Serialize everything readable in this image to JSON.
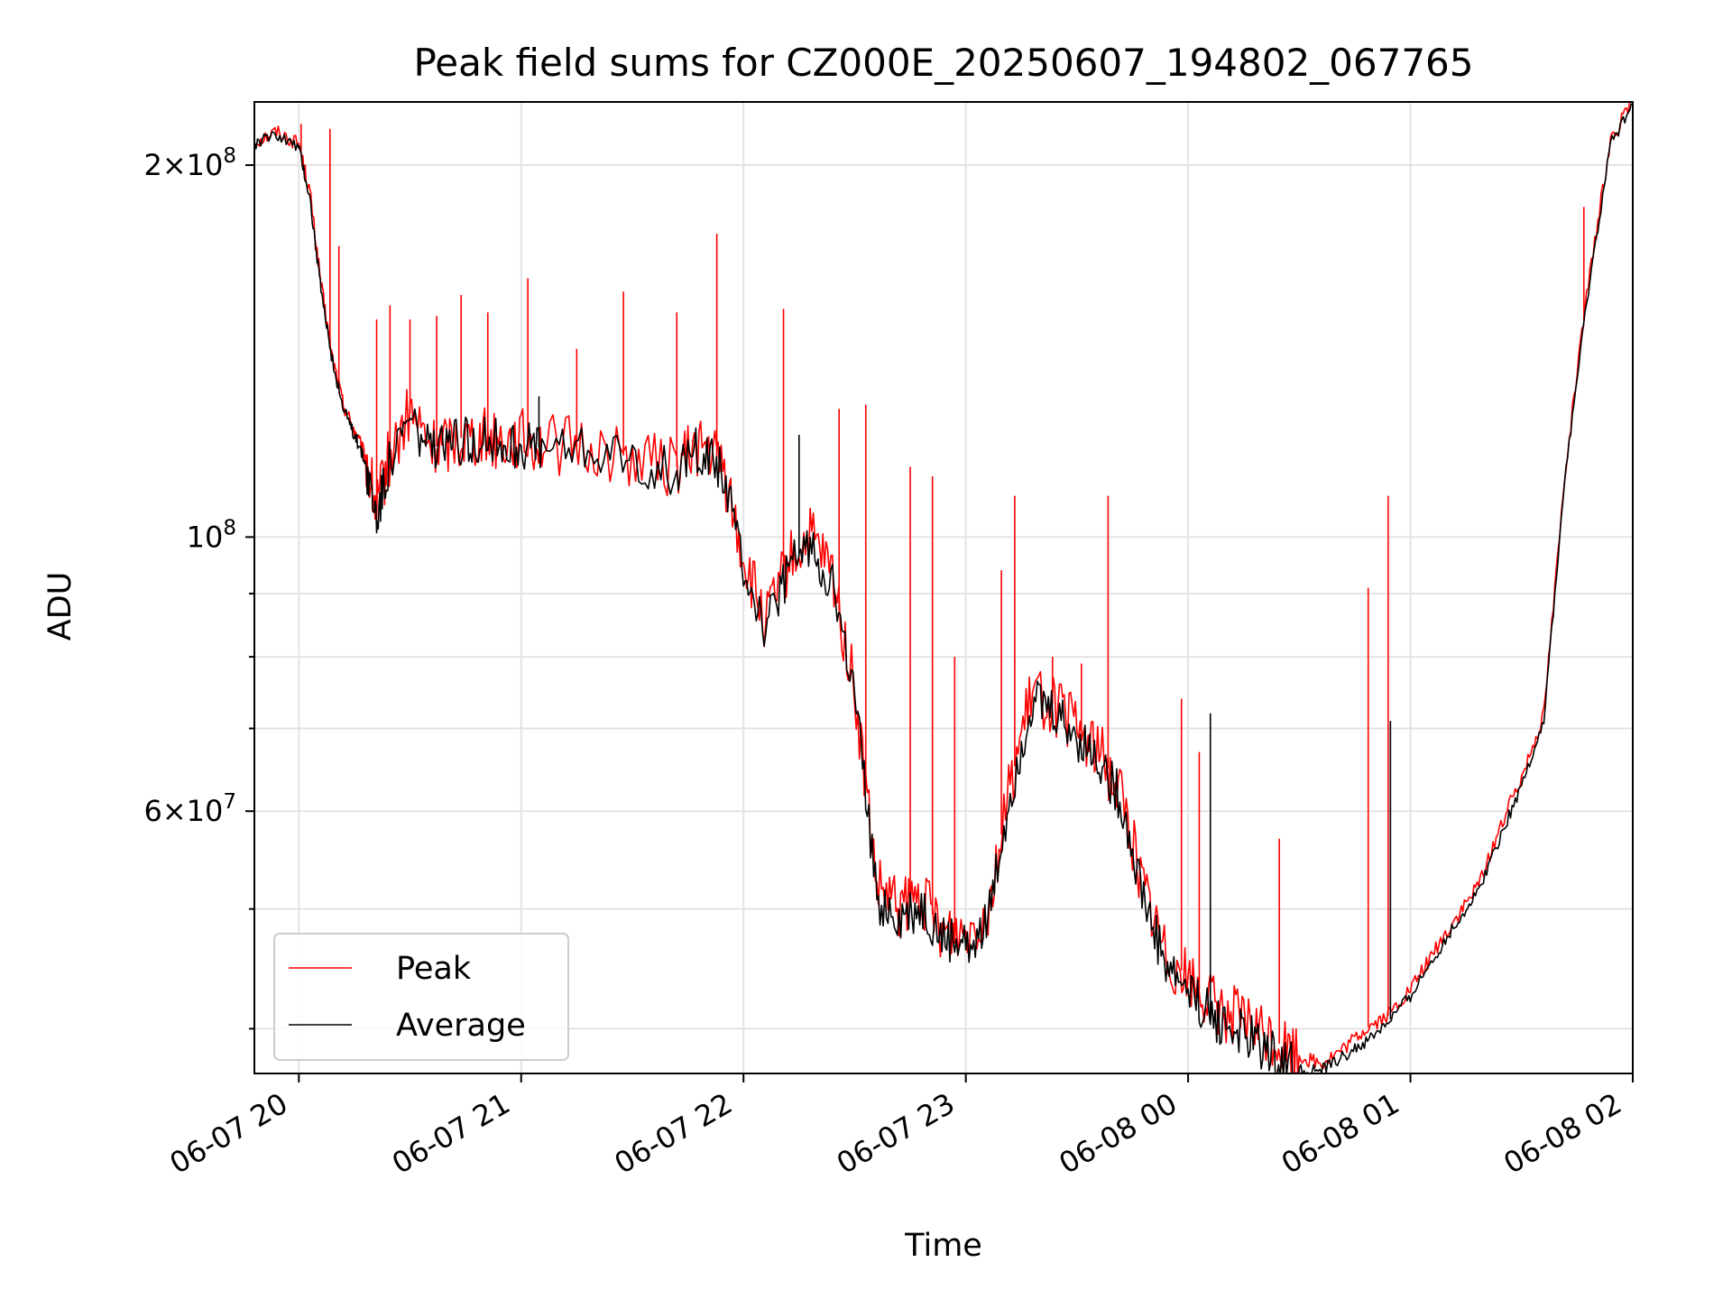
{
  "chart_data": {
    "type": "line",
    "title": "Peak field sums for CZ000E_20250607_194802_067765",
    "xlabel": "Time",
    "ylabel": "ADU",
    "yscale": "log",
    "grid": true,
    "legend_position": "lower-left",
    "x_unit": "hours since 2025-06-07 19:48",
    "xlim": [
      0,
      6.2
    ],
    "ylim": [
      36800000,
      225000000
    ],
    "x_ticks": [
      {
        "x": 0.2,
        "label": "06-07 20"
      },
      {
        "x": 1.2,
        "label": "06-07 21"
      },
      {
        "x": 2.2,
        "label": "06-07 22"
      },
      {
        "x": 3.2,
        "label": "06-07 23"
      },
      {
        "x": 4.2,
        "label": "06-08 00"
      },
      {
        "x": 5.2,
        "label": "06-08 01"
      },
      {
        "x": 6.2,
        "label": "06-08 02"
      }
    ],
    "y_major_ticks": [
      {
        "value": 200000000,
        "mantissa": "2",
        "exp": "8"
      },
      {
        "value": 100000000,
        "mantissa": "",
        "exp": "8"
      },
      {
        "value": 60000000,
        "mantissa": "6",
        "exp": "7"
      }
    ],
    "y_minor_ticks": [
      40000000,
      50000000,
      70000000,
      80000000,
      90000000
    ],
    "y_tick_base": "10",
    "y_tick_times": "×",
    "series": [
      {
        "name": "Peak",
        "color": "#ff0000",
        "x": [
          0,
          0.1,
          0.2,
          0.25,
          0.3,
          0.35,
          0.4,
          0.45,
          0.5,
          0.55,
          0.6,
          0.7,
          0.8,
          0.9,
          1.0,
          1.1,
          1.2,
          1.3,
          1.5,
          1.7,
          1.9,
          2.0,
          2.1,
          2.2,
          2.3,
          2.4,
          2.5,
          2.6,
          2.7,
          2.8,
          2.9,
          3.0,
          3.1,
          3.2,
          3.3,
          3.4,
          3.5,
          3.6,
          3.7,
          3.8,
          3.9,
          4.0,
          4.1,
          4.2,
          4.3,
          4.4,
          4.5,
          4.6,
          4.7,
          4.8,
          4.9,
          5.0,
          5.1,
          5.2,
          5.3,
          5.4,
          5.5,
          5.6,
          5.7,
          5.8,
          5.9,
          6.0,
          6.1,
          6.2
        ],
        "values": [
          209000000,
          213000000,
          208000000,
          190000000,
          160000000,
          140000000,
          128000000,
          122000000,
          116000000,
          105000000,
          115000000,
          126000000,
          118000000,
          120000000,
          121000000,
          120000000,
          120000000,
          119000000,
          118000000,
          116000000,
          114000000,
          119000000,
          115000000,
          96000000,
          85000000,
          95000000,
          100000000,
          93000000,
          75000000,
          52000000,
          50000000,
          51000000,
          48000000,
          48000000,
          50000000,
          63000000,
          75000000,
          73000000,
          70000000,
          67000000,
          62000000,
          52000000,
          46000000,
          44000000,
          42000000,
          41000000,
          40000000,
          39000000,
          38000000,
          37500000,
          38500000,
          40000000,
          41000000,
          43000000,
          46000000,
          49000000,
          52000000,
          58000000,
          64000000,
          72000000,
          115000000,
          160000000,
          210000000,
          225000000
        ],
        "spikes": [
          {
            "x": 0.21,
            "value": 216000000
          },
          {
            "x": 0.34,
            "value": 214000000
          },
          {
            "x": 0.38,
            "value": 172000000
          },
          {
            "x": 0.55,
            "value": 150000000
          },
          {
            "x": 0.61,
            "value": 154000000
          },
          {
            "x": 0.7,
            "value": 150000000
          },
          {
            "x": 0.82,
            "value": 151000000
          },
          {
            "x": 0.93,
            "value": 157000000
          },
          {
            "x": 1.05,
            "value": 152000000
          },
          {
            "x": 1.23,
            "value": 162000000
          },
          {
            "x": 1.45,
            "value": 142000000
          },
          {
            "x": 1.66,
            "value": 158000000
          },
          {
            "x": 1.9,
            "value": 152000000
          },
          {
            "x": 2.08,
            "value": 176000000
          },
          {
            "x": 2.38,
            "value": 153000000
          },
          {
            "x": 2.63,
            "value": 127000000
          },
          {
            "x": 2.75,
            "value": 128000000
          },
          {
            "x": 2.95,
            "value": 114000000
          },
          {
            "x": 3.05,
            "value": 112000000
          },
          {
            "x": 3.15,
            "value": 80000000
          },
          {
            "x": 3.36,
            "value": 94000000
          },
          {
            "x": 3.42,
            "value": 108000000
          },
          {
            "x": 3.59,
            "value": 80000000
          },
          {
            "x": 3.72,
            "value": 79000000
          },
          {
            "x": 3.84,
            "value": 108000000
          },
          {
            "x": 4.17,
            "value": 74000000
          },
          {
            "x": 4.25,
            "value": 67000000
          },
          {
            "x": 4.61,
            "value": 57000000
          },
          {
            "x": 5.01,
            "value": 91000000
          },
          {
            "x": 5.1,
            "value": 108000000
          },
          {
            "x": 5.98,
            "value": 185000000
          }
        ]
      },
      {
        "name": "Average",
        "color": "#000000",
        "x": [
          0,
          0.1,
          0.2,
          0.25,
          0.3,
          0.35,
          0.4,
          0.45,
          0.5,
          0.55,
          0.6,
          0.7,
          0.8,
          0.9,
          1.0,
          1.1,
          1.2,
          1.3,
          1.5,
          1.7,
          1.9,
          2.0,
          2.1,
          2.2,
          2.3,
          2.4,
          2.5,
          2.6,
          2.7,
          2.8,
          2.9,
          3.0,
          3.1,
          3.2,
          3.3,
          3.4,
          3.5,
          3.6,
          3.7,
          3.8,
          3.9,
          4.0,
          4.1,
          4.2,
          4.3,
          4.4,
          4.5,
          4.6,
          4.7,
          4.8,
          4.9,
          5.0,
          5.1,
          5.2,
          5.3,
          5.4,
          5.5,
          5.6,
          5.7,
          5.8,
          5.9,
          6.0,
          6.1,
          6.2
        ],
        "values": [
          208000000,
          212000000,
          207000000,
          188000000,
          158000000,
          139000000,
          127000000,
          121000000,
          115000000,
          104000000,
          114000000,
          125000000,
          117000000,
          119000000,
          120000000,
          119000000,
          119000000,
          118000000,
          117000000,
          115000000,
          113000000,
          118000000,
          114000000,
          95000000,
          84000000,
          94000000,
          99000000,
          92000000,
          74000000,
          51000000,
          49000000,
          50000000,
          47000000,
          47000000,
          49000000,
          62000000,
          74000000,
          72000000,
          69000000,
          66000000,
          61000000,
          51000000,
          45000000,
          43000000,
          41000000,
          40000000,
          39000000,
          38000000,
          37000000,
          37000000,
          38000000,
          39000000,
          40500000,
          42500000,
          45500000,
          48500000,
          51500000,
          57000000,
          63000000,
          71000000,
          114000000,
          158000000,
          208000000,
          224000000
        ],
        "spikes": [
          {
            "x": 1.28,
            "value": 130000000
          },
          {
            "x": 2.45,
            "value": 121000000
          },
          {
            "x": 4.3,
            "value": 72000000
          },
          {
            "x": 5.11,
            "value": 71000000
          }
        ]
      }
    ]
  }
}
